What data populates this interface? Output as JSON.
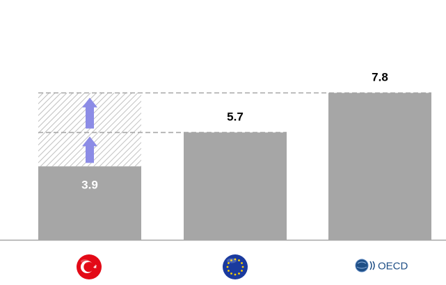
{
  "chart_data": {
    "type": "bar",
    "categories": [
      "Türkiye",
      "EU",
      "OECD"
    ],
    "values": [
      3.9,
      5.7,
      7.8
    ],
    "value_labels": [
      "3.9",
      "5.7",
      "7.8"
    ],
    "ylim": [
      0,
      8
    ],
    "grid": false,
    "legend": "none",
    "reference_lines": [
      5.7,
      7.8
    ],
    "gap_indicators": [
      {
        "category": "Türkiye",
        "from": 3.9,
        "to": 5.7,
        "pattern": "diagonal-hatch",
        "arrow": "up"
      },
      {
        "category": "Türkiye",
        "from": 5.7,
        "to": 7.8,
        "pattern": "diagonal-hatch",
        "arrow": "up"
      }
    ],
    "category_icons": [
      "turkey-flag-icon",
      "eu-flag-icon",
      "oecd-logo-icon"
    ],
    "colors": {
      "bar": "#a6a6a6",
      "arrow": "#8c8ce6",
      "reference_line": "#a6a6a6",
      "label_inside": "#ffffff",
      "label_outside": "#000000",
      "turkey_red": "#e30a17",
      "eu_blue": "#1a3a9e",
      "eu_star": "#ffd200",
      "oecd_blue": "#1f4f86"
    }
  },
  "logos": {
    "oecd_text": "OECD"
  }
}
